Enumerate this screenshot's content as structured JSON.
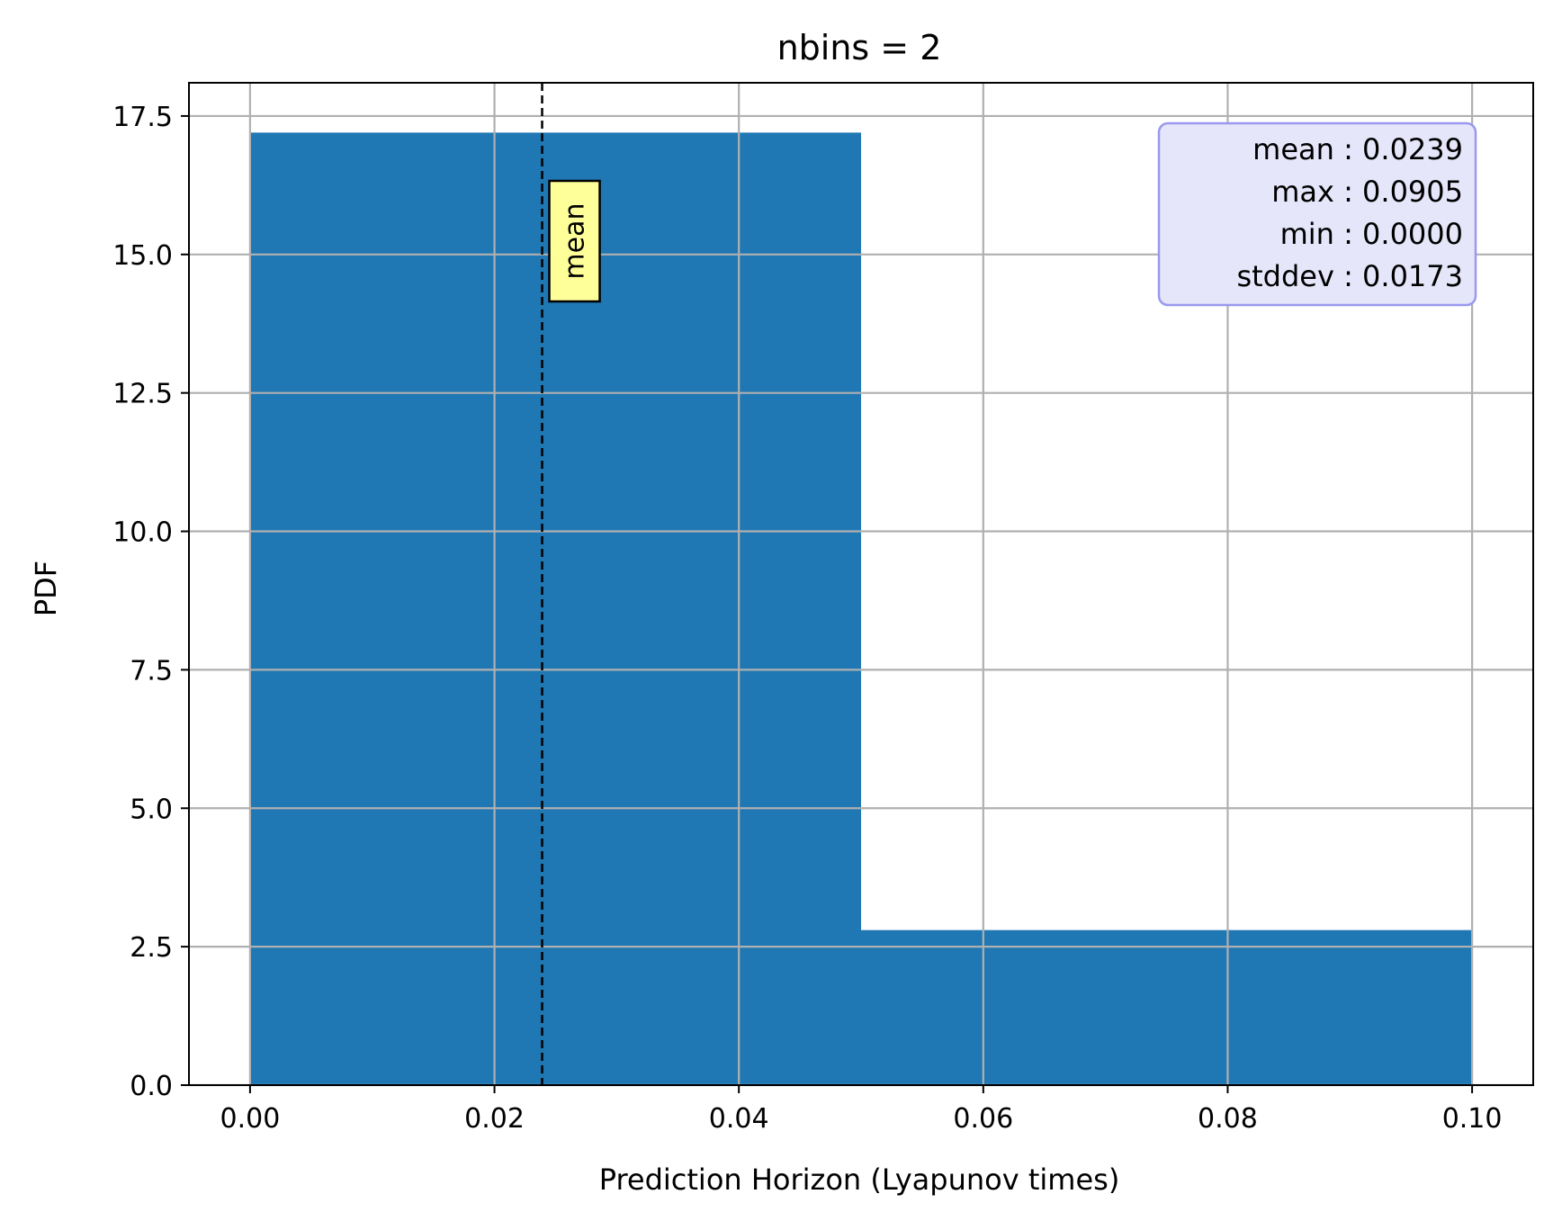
{
  "chart_data": {
    "type": "bar",
    "title": "nbins = 2",
    "xlabel": "Prediction Horizon (Lyapunov times)",
    "ylabel": "PDF",
    "xlim": [
      -0.005,
      0.105
    ],
    "ylim": [
      0,
      18.1
    ],
    "grid": true,
    "bar_color": "#1f77b4",
    "bins": [
      {
        "x0": 0.0,
        "x1": 0.05,
        "value": 17.2
      },
      {
        "x0": 0.05,
        "x1": 0.1,
        "value": 2.8
      }
    ],
    "x_ticks": [
      0.0,
      0.02,
      0.04,
      0.06,
      0.08,
      0.1
    ],
    "x_tick_labels": [
      "0.00",
      "0.02",
      "0.04",
      "0.06",
      "0.08",
      "0.10"
    ],
    "y_ticks": [
      0.0,
      2.5,
      5.0,
      7.5,
      10.0,
      12.5,
      15.0,
      17.5
    ],
    "y_tick_labels": [
      "0.0",
      "2.5",
      "5.0",
      "7.5",
      "10.0",
      "12.5",
      "15.0",
      "17.5"
    ],
    "mean_line": {
      "x": 0.0239,
      "label": "mean",
      "label_y": 15.5,
      "label_bg": "#ffff99"
    },
    "stats_box": {
      "placement": "top-right",
      "bg_color": "#e6e6fa",
      "border_color": "#9999ee",
      "lines": [
        "mean : 0.0239",
        "max : 0.0905",
        "min : 0.0000",
        "stddev : 0.0173"
      ]
    }
  }
}
